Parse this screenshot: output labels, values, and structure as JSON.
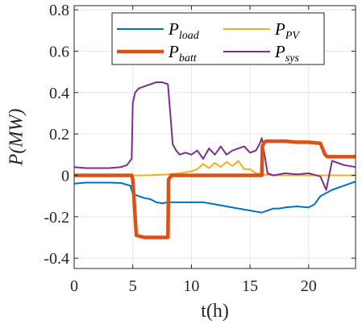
{
  "chart_data": {
    "type": "line",
    "xlabel": "t(h)",
    "ylabel": "P(MW)",
    "xlim": [
      0,
      24
    ],
    "ylim": [
      -0.45,
      0.82
    ],
    "xticks": [
      0,
      5,
      10,
      15,
      20
    ],
    "xtick_labels": [
      "0",
      "5",
      "10",
      "15",
      "20"
    ],
    "yticks": [
      -0.4,
      -0.2,
      0,
      0.2,
      0.4,
      0.6,
      0.8
    ],
    "ytick_labels": [
      "-0.4",
      "-0.2",
      "0",
      "0.2",
      "0.4",
      "0.6",
      "0.8"
    ],
    "grid": true,
    "legend_position": "top",
    "legend_columns": 2,
    "series": [
      {
        "name": "P_load",
        "label_base": "P",
        "label_sub": "load",
        "color": "#0072BD",
        "width": "normal",
        "x": [
          0,
          1,
          2,
          3,
          4,
          4.8,
          5.0,
          5.5,
          6,
          6.5,
          7,
          7.5,
          8,
          9,
          10,
          11,
          12,
          13,
          14,
          15,
          16,
          16.5,
          17,
          17.5,
          18,
          19,
          20,
          20.5,
          21,
          22,
          23,
          24
        ],
        "y": [
          -0.04,
          -0.035,
          -0.035,
          -0.035,
          -0.037,
          -0.05,
          -0.09,
          -0.1,
          -0.11,
          -0.115,
          -0.13,
          -0.135,
          -0.13,
          -0.13,
          -0.13,
          -0.13,
          -0.14,
          -0.15,
          -0.16,
          -0.17,
          -0.18,
          -0.17,
          -0.16,
          -0.16,
          -0.155,
          -0.15,
          -0.155,
          -0.14,
          -0.1,
          -0.07,
          -0.05,
          -0.03
        ]
      },
      {
        "name": "P_batt",
        "label_base": "P",
        "label_sub": "batt",
        "color": "#D95319",
        "width": "thick",
        "x": [
          0,
          4.9,
          5.0,
          5.3,
          6,
          7,
          8.0,
          8.05,
          8.3,
          9,
          10,
          11,
          12,
          13,
          14,
          15,
          16.0,
          16.05,
          16.2,
          16.4,
          17,
          18,
          19,
          20,
          21,
          21.4,
          21.6,
          22,
          23,
          24
        ],
        "y": [
          0,
          0,
          -0.02,
          -0.29,
          -0.3,
          -0.3,
          -0.3,
          -0.02,
          0,
          0,
          0,
          0,
          0,
          0,
          0,
          0,
          0,
          0.14,
          0.16,
          0.165,
          0.165,
          0.165,
          0.16,
          0.16,
          0.155,
          0.1,
          0.09,
          0.09,
          0.09,
          0.09
        ]
      },
      {
        "name": "P_PV",
        "label_base": "P",
        "label_sub": "PV",
        "color": "#EDB120",
        "width": "normal",
        "x": [
          0,
          2,
          4,
          6,
          7,
          8,
          9,
          10,
          10.5,
          11,
          11.5,
          12,
          12.5,
          13,
          13.5,
          14,
          14.5,
          15,
          15.5,
          16,
          17,
          18,
          20,
          22,
          24
        ],
        "y": [
          0,
          0,
          0,
          0,
          0.002,
          0.005,
          0.01,
          0.02,
          0.03,
          0.055,
          0.035,
          0.06,
          0.04,
          0.065,
          0.045,
          0.07,
          0.03,
          0.03,
          0.01,
          0.005,
          0,
          0,
          0,
          0,
          0
        ]
      },
      {
        "name": "P_sys",
        "label_base": "P",
        "label_sub": "sys",
        "color": "#7E2F8E",
        "width": "normal",
        "x": [
          0,
          1,
          2,
          3,
          4,
          4.5,
          4.9,
          5.0,
          5.2,
          5.5,
          6,
          6.5,
          7,
          7.5,
          8,
          8.2,
          8.4,
          8.7,
          9,
          9.5,
          10,
          10.5,
          11,
          11.5,
          12,
          12.5,
          13,
          13.5,
          14,
          14.5,
          15,
          15.5,
          15.8,
          16,
          16.5,
          17,
          18,
          19,
          20,
          21,
          21.5,
          22,
          22.5,
          23,
          24
        ],
        "y": [
          0.04,
          0.035,
          0.035,
          0.035,
          0.04,
          0.05,
          0.08,
          0.35,
          0.4,
          0.42,
          0.43,
          0.44,
          0.45,
          0.45,
          0.44,
          0.3,
          0.15,
          0.12,
          0.1,
          0.11,
          0.1,
          0.12,
          0.08,
          0.13,
          0.1,
          0.14,
          0.1,
          0.12,
          0.13,
          0.14,
          0.11,
          0.12,
          0.15,
          0.18,
          0.01,
          0.0,
          0.01,
          0.005,
          0.01,
          -0.005,
          -0.07,
          0.07,
          0.06,
          0.05,
          0.04
        ]
      }
    ]
  }
}
